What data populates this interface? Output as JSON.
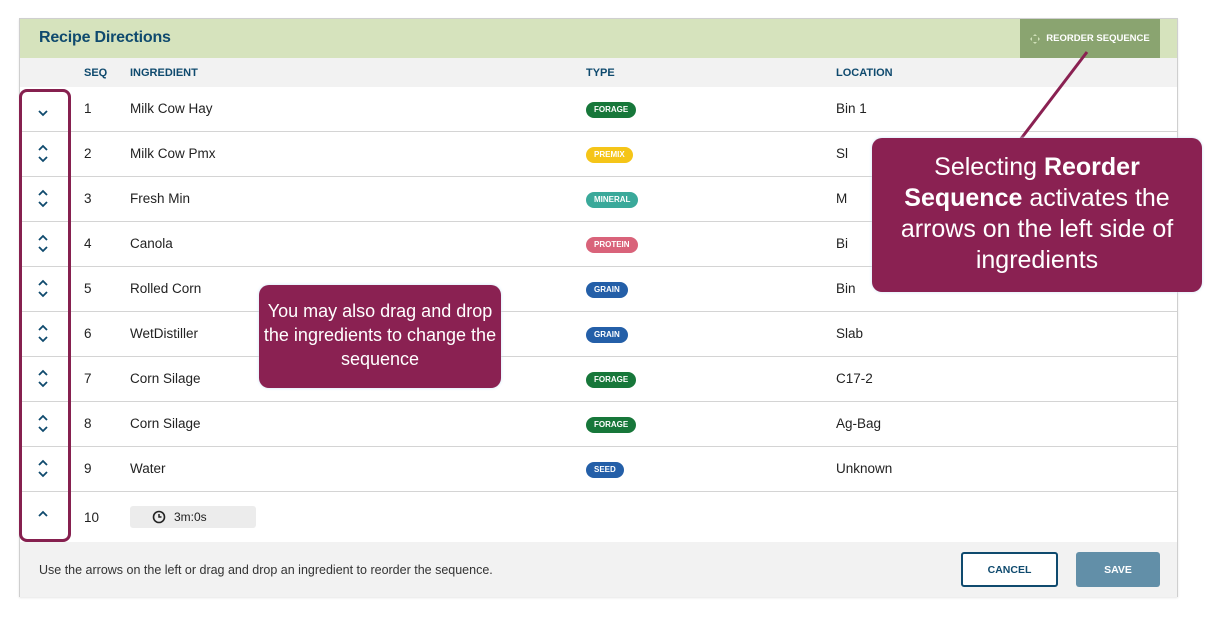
{
  "header": {
    "title": "Recipe Directions",
    "reorder_label": "REORDER SEQUENCE"
  },
  "columns": {
    "seq": "SEQ",
    "ingredient": "INGREDIENT",
    "type": "TYPE",
    "location": "LOCATION"
  },
  "type_colors": {
    "FORAGE": "#17773a",
    "PREMIX": "#f5c518",
    "MINERAL": "#3aa99a",
    "PROTEIN": "#d9637a",
    "GRAIN": "#245fa8",
    "SEED": "#245fa8"
  },
  "rows": [
    {
      "seq": "1",
      "ingredient": "Milk Cow Hay",
      "type": "FORAGE",
      "location": "Bin 1",
      "arrows": "down"
    },
    {
      "seq": "2",
      "ingredient": "Milk Cow Pmx",
      "type": "PREMIX",
      "location": "Sl",
      "arrows": "both"
    },
    {
      "seq": "3",
      "ingredient": "Fresh Min",
      "type": "MINERAL",
      "location": "M",
      "arrows": "both"
    },
    {
      "seq": "4",
      "ingredient": "Canola",
      "type": "PROTEIN",
      "location": "Bi",
      "arrows": "both"
    },
    {
      "seq": "5",
      "ingredient": "Rolled Corn",
      "type": "GRAIN",
      "location": "Bin",
      "arrows": "both"
    },
    {
      "seq": "6",
      "ingredient": "WetDistiller",
      "type": "GRAIN",
      "location": "Slab",
      "arrows": "both"
    },
    {
      "seq": "7",
      "ingredient": "Corn Silage",
      "type": "FORAGE",
      "location": "C17-2",
      "arrows": "both"
    },
    {
      "seq": "8",
      "ingredient": "Corn Silage",
      "type": "FORAGE",
      "location": "Ag-Bag",
      "arrows": "both"
    },
    {
      "seq": "9",
      "ingredient": "Water",
      "type": "SEED",
      "location": "Unknown",
      "arrows": "both"
    }
  ],
  "timer_row": {
    "seq": "10",
    "duration": "3m:0s",
    "arrows": "up"
  },
  "footer": {
    "hint": "Use the arrows on the left or drag and drop an ingredient to reorder the sequence.",
    "cancel": "CANCEL",
    "save": "SAVE"
  },
  "callouts": {
    "reorder": {
      "pre": "Selecting ",
      "bold": "Reorder Sequence",
      "post": " activates the arrows on the left side of ingredients"
    },
    "drag": "You may also drag and drop the ingredients to change the sequence"
  },
  "annotation_color": "#8a2152"
}
